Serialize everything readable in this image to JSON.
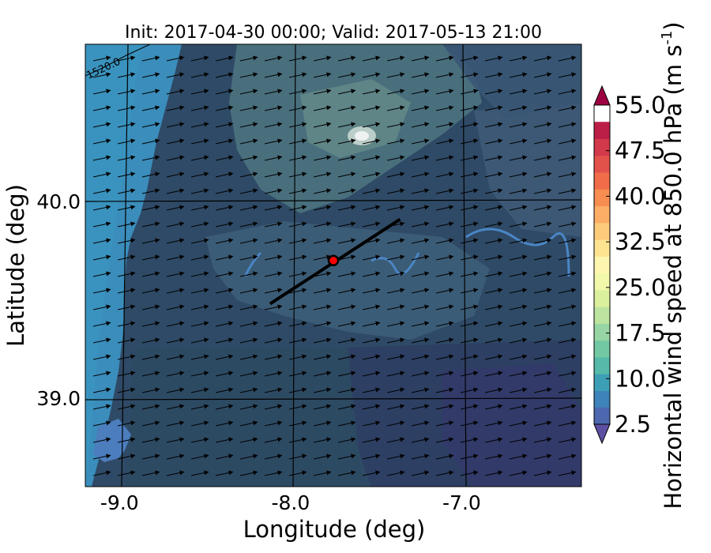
{
  "title": "Init: 2017-04-30 00:00; Valid: 2017-05-13 21:00",
  "xlabel": "Longitude (deg)",
  "ylabel": "Latitude (deg)",
  "xticks": [
    {
      "value": -9.0,
      "label": "-9.0"
    },
    {
      "value": -8.0,
      "label": "-8.0"
    },
    {
      "value": -7.0,
      "label": "-7.0"
    }
  ],
  "yticks": [
    {
      "value": 40.0,
      "label": "40.0"
    },
    {
      "value": 39.0,
      "label": "39.0"
    }
  ],
  "contour_label": "1520.0",
  "colorbar": {
    "label": "Horizontal wind speed at 850.0 hPa (m s",
    "label_exp": "-1",
    "label_close": ")",
    "min": 2.5,
    "max": 55.0,
    "step": 2.5,
    "ticks": [
      {
        "value": 2.5,
        "label": "2.5"
      },
      {
        "value": 10.0,
        "label": "10.0"
      },
      {
        "value": 17.5,
        "label": "17.5"
      },
      {
        "value": 25.0,
        "label": "25.0"
      },
      {
        "value": 32.5,
        "label": "32.5"
      },
      {
        "value": 40.0,
        "label": "40.0"
      },
      {
        "value": 47.5,
        "label": "47.5"
      },
      {
        "value": 55.0,
        "label": "55.0"
      }
    ],
    "colors": [
      "#5e4fa2",
      "#4d68ae",
      "#3e83b9",
      "#3d9fb5",
      "#56b9a9",
      "#73c8a4",
      "#98d5a4",
      "#bce4a0",
      "#daf09d",
      "#f1f8aa",
      "#fef6b0",
      "#fee491",
      "#fdcb7b",
      "#fcae66",
      "#f88d52",
      "#f16d4a",
      "#e3524a",
      "#d23a4b",
      "#bb1f48",
      "#9e0142"
    ]
  },
  "chart_data": {
    "type": "map",
    "xlim": [
      -9.2,
      -6.3
    ],
    "ylim": [
      38.55,
      40.8
    ],
    "wind_direction": "west-southwest to east-northeast",
    "cross_section_line": {
      "start": [
        -8.12,
        39.48
      ],
      "end": [
        -7.36,
        39.91
      ]
    },
    "point": {
      "lon": -7.75,
      "lat": 39.7,
      "color": "#ff0000"
    },
    "grid": true
  }
}
